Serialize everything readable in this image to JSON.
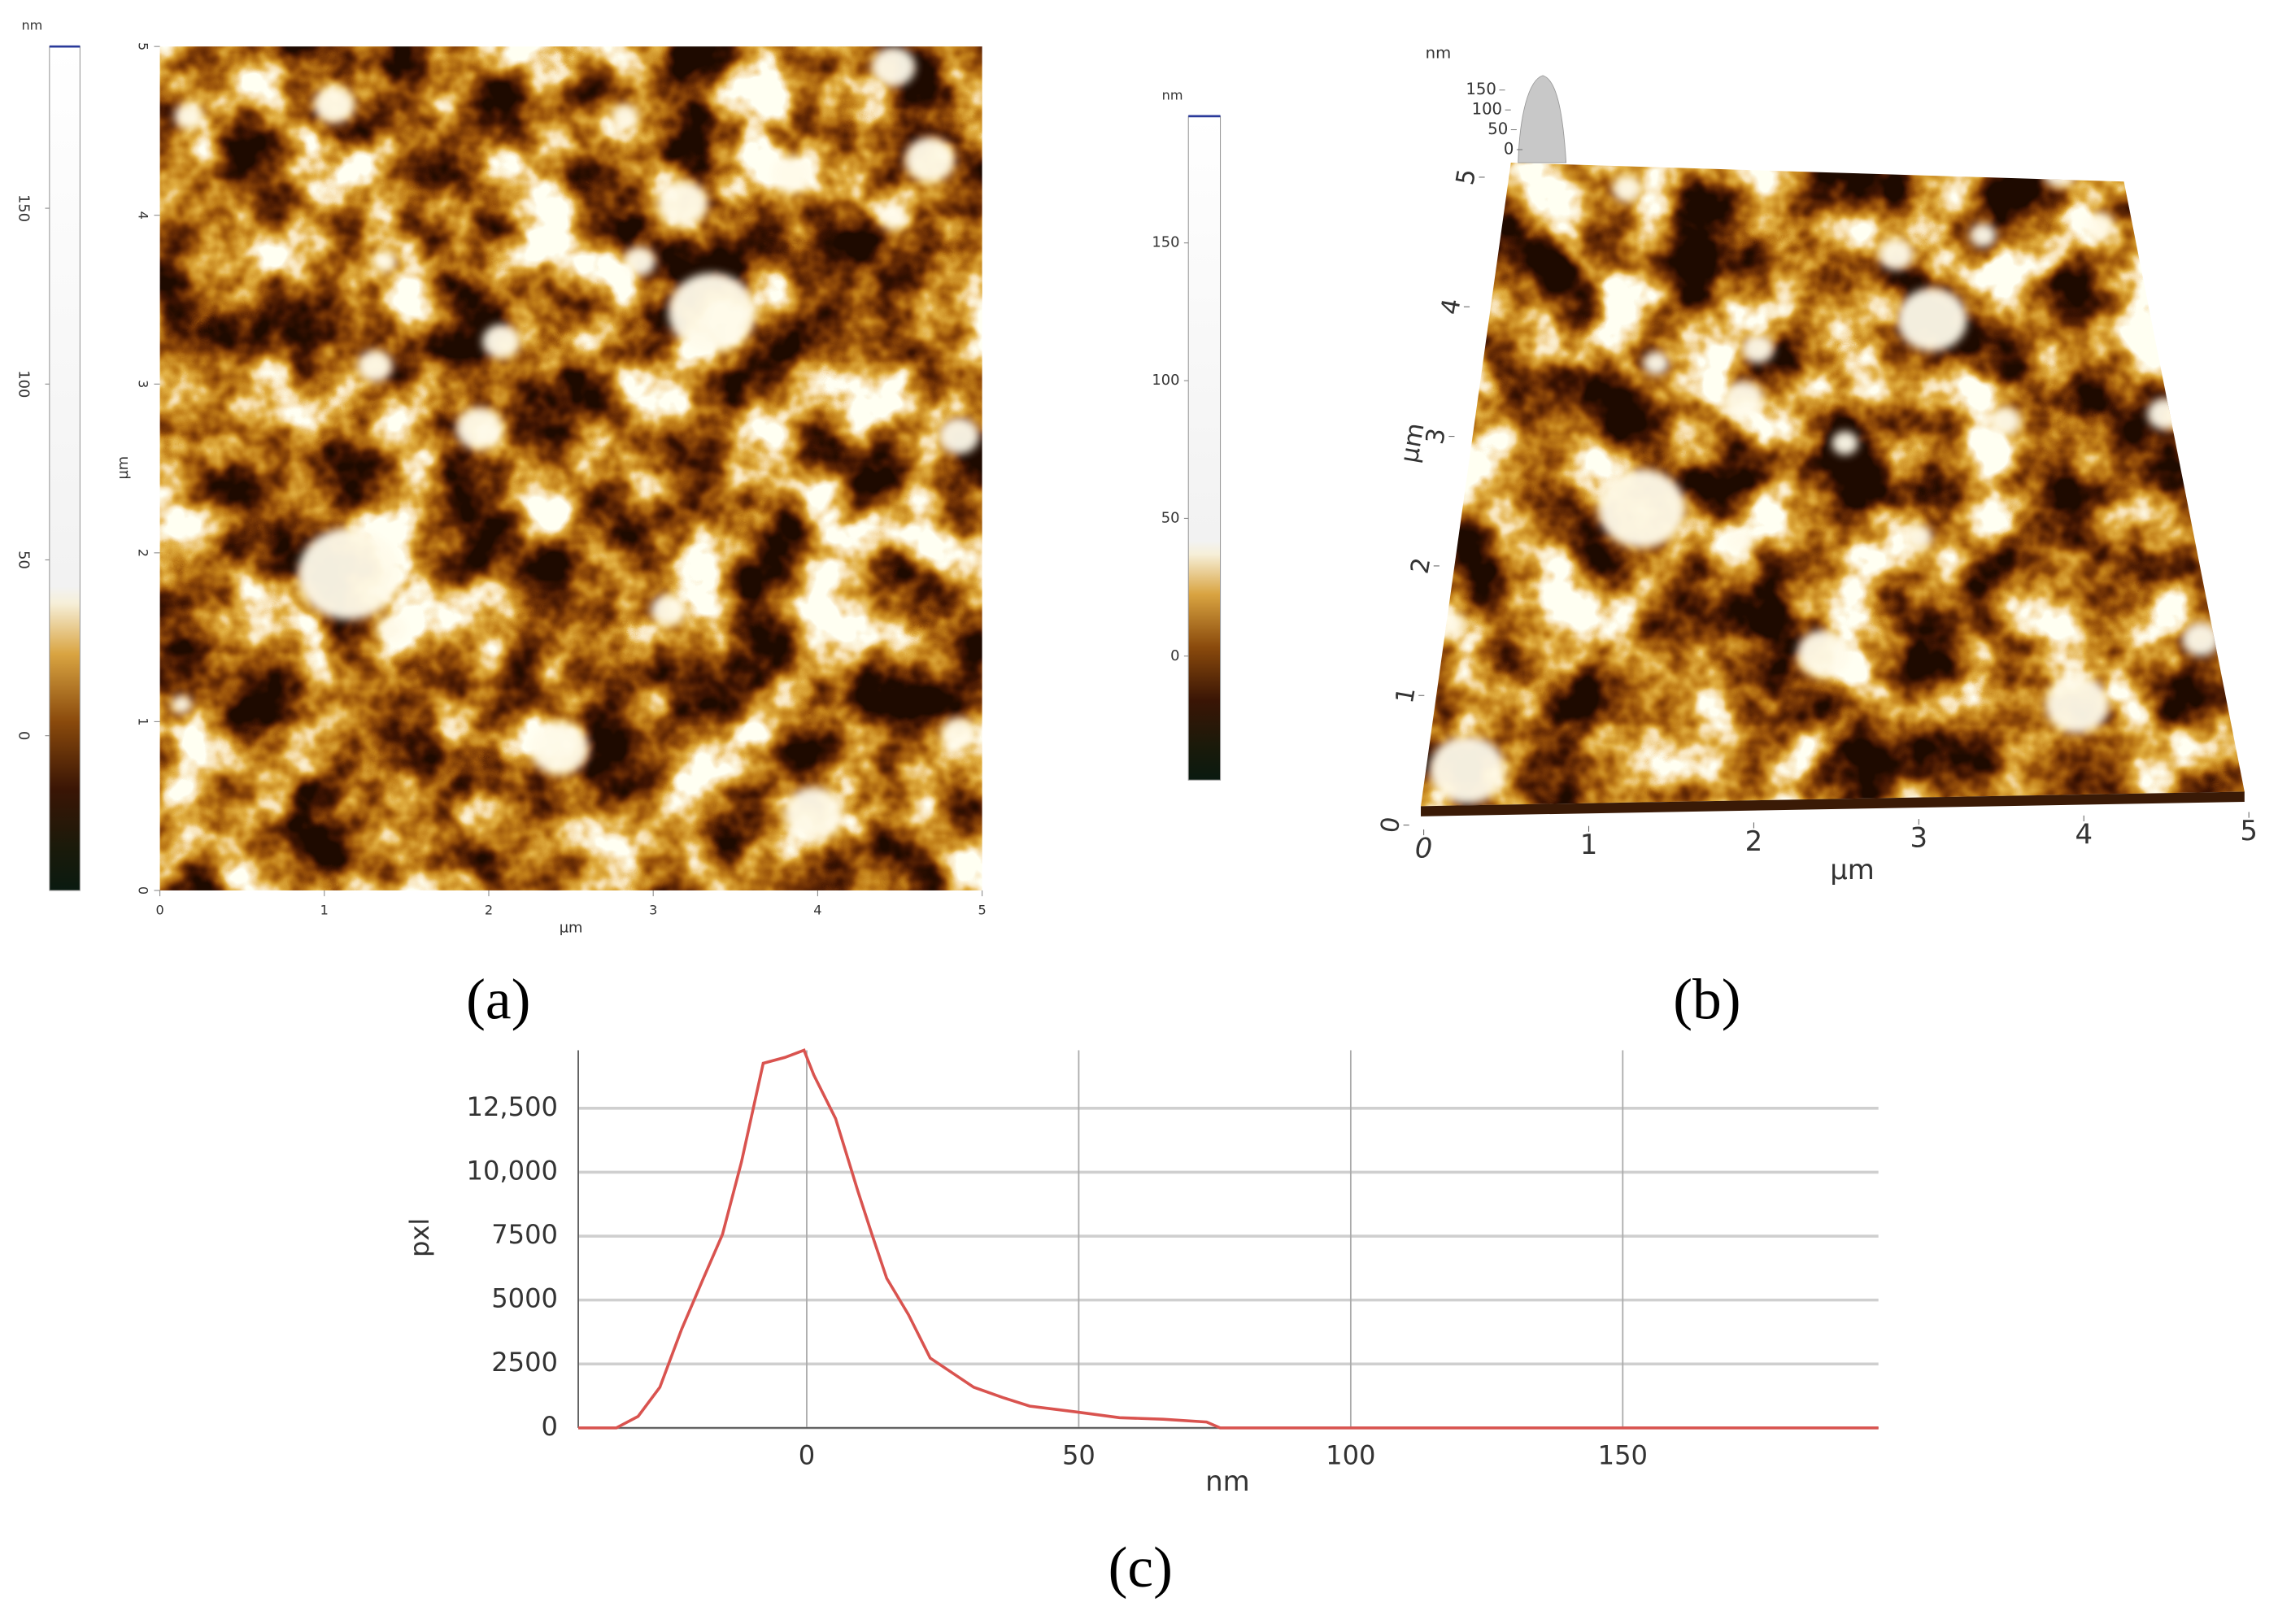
{
  "chart_data": [
    {
      "type": "heatmap",
      "panel_label": "(a)",
      "x_label": "µm",
      "y_label": "µm",
      "xlim": [
        0,
        5
      ],
      "ylim": [
        0,
        5
      ],
      "xticks": [
        0,
        1,
        2,
        3,
        4,
        5
      ],
      "yticks": [
        0,
        1,
        2,
        3,
        4,
        5
      ],
      "colorbar": {
        "label": "nm",
        "lim": [
          -44,
          196
        ],
        "ticks": [
          0,
          50,
          100,
          150
        ]
      }
    },
    {
      "type": "surface",
      "panel_label": "(b)",
      "x_label": "µm",
      "y_label": "µm",
      "z_label": "nm",
      "xlim": [
        0,
        5
      ],
      "ylim": [
        0,
        5
      ],
      "zlim": [
        0,
        150
      ],
      "xticks": [
        0,
        1,
        2,
        3,
        4,
        5
      ],
      "yticks": [
        0,
        1,
        2,
        3,
        4,
        5
      ],
      "zticks": [
        0,
        50,
        100,
        150
      ],
      "colorbar": {
        "label": "nm",
        "lim": [
          -45,
          196
        ],
        "ticks": [
          0,
          50,
          100,
          150
        ]
      }
    },
    {
      "type": "line",
      "panel_label": "(c)",
      "x_label": "nm",
      "y_label": "pxl",
      "color": "#d9534f",
      "grid": true,
      "xlim": [
        -42,
        197
      ],
      "ylim": [
        0,
        14770
      ],
      "xticks": [
        0,
        50,
        100,
        150
      ],
      "yticks": [
        0,
        2500,
        5000,
        7500,
        {
          "value": 10000,
          "label": "10,000"
        },
        {
          "value": 12500,
          "label": "12,500"
        }
      ],
      "x": [
        -42,
        -35,
        -31,
        -27,
        -23,
        -19,
        -15.5,
        -12,
        -8,
        -4,
        -0.5,
        1.3,
        5.3,
        9.4,
        12,
        14.7,
        18.7,
        22.7,
        26.7,
        30.7,
        36,
        41,
        49.5,
        57.5,
        65.5,
        73.5,
        76,
        120,
        197
      ],
      "values": [
        0,
        0,
        450,
        1590,
        3860,
        5850,
        7560,
        10400,
        14260,
        14490,
        14770,
        13800,
        12100,
        9260,
        7560,
        5850,
        4430,
        2730,
        2160,
        1590,
        1190,
        850,
        625,
        400,
        340,
        230,
        0,
        0,
        0
      ]
    }
  ]
}
